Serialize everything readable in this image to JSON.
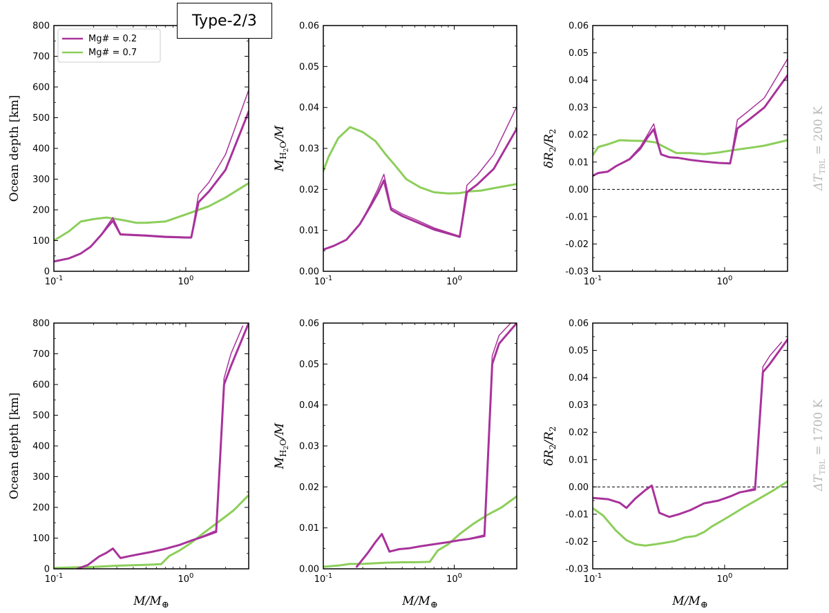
{
  "header": {
    "type_label": "Type-2/3"
  },
  "colors": {
    "purple": "#a8329b",
    "green": "#8cce5a"
  },
  "legend": [
    {
      "label": "Mg# = 0.2",
      "color": "#a8329b"
    },
    {
      "label": "Mg# = 0.7",
      "color": "#8cce5a"
    }
  ],
  "row_labels": [
    "ΔT_TBL = 200 K",
    "ΔT_TBL = 1700 K"
  ],
  "chart_data": [
    {
      "type": "line",
      "title": "",
      "xscale": "log",
      "xlim": [
        0.1,
        3
      ],
      "xlabel": "M/M⊕",
      "ylabel": "Ocean depth [km]",
      "ylim": [
        0,
        800
      ],
      "yticks": [
        "0",
        "100",
        "200",
        "300",
        "400",
        "500",
        "600",
        "700",
        "800"
      ],
      "xtick_labels": [
        "10^-1",
        "10^0"
      ],
      "series": [
        {
          "name": "Mg# = 0.2 (thick)",
          "color": "purple",
          "width": 3,
          "x": [
            0.1,
            0.13,
            0.16,
            0.19,
            0.23,
            0.25,
            0.28,
            0.32,
            0.4,
            0.5,
            0.7,
            1.0,
            1.1,
            1.25,
            1.5,
            2,
            3
          ],
          "y": [
            32,
            42,
            58,
            80,
            120,
            140,
            165,
            120,
            118,
            116,
            112,
            110,
            110,
            225,
            260,
            330,
            520
          ]
        },
        {
          "name": "Mg# = 0.2 (thin)",
          "color": "purple",
          "width": 1.5,
          "x": [
            0.1,
            0.13,
            0.16,
            0.19,
            0.23,
            0.25,
            0.28,
            0.32,
            0.4,
            0.5,
            0.7,
            1.0,
            1.1,
            1.25,
            1.5,
            2,
            3
          ],
          "y": [
            32,
            42,
            58,
            80,
            122,
            145,
            175,
            122,
            120,
            118,
            114,
            112,
            112,
            250,
            290,
            380,
            590
          ]
        },
        {
          "name": "Mg# = 0.7",
          "color": "green",
          "width": 3,
          "x": [
            0.1,
            0.13,
            0.16,
            0.2,
            0.25,
            0.3,
            0.35,
            0.42,
            0.5,
            0.7,
            1.0,
            1.5,
            2,
            3
          ],
          "y": [
            100,
            130,
            162,
            170,
            175,
            170,
            165,
            158,
            158,
            162,
            185,
            212,
            240,
            287
          ]
        }
      ]
    },
    {
      "type": "line",
      "title": "",
      "xscale": "log",
      "xlim": [
        0.1,
        3
      ],
      "xlabel": "M/M⊕",
      "ylabel": "M_H2O/M",
      "ylim": [
        0,
        0.06
      ],
      "yticks": [
        "0.00",
        "0.01",
        "0.02",
        "0.03",
        "0.04",
        "0.05",
        "0.06"
      ],
      "xtick_labels": [
        "10^-1",
        "10^0"
      ],
      "series": [
        {
          "name": "Mg# = 0.2 (thick)",
          "color": "purple",
          "width": 3,
          "x": [
            0.1,
            0.12,
            0.15,
            0.19,
            0.23,
            0.26,
            0.29,
            0.33,
            0.4,
            0.5,
            0.7,
            1.0,
            1.1,
            1.25,
            1.5,
            2,
            3
          ],
          "y": [
            0.0053,
            0.0062,
            0.0077,
            0.0115,
            0.016,
            0.019,
            0.0222,
            0.015,
            0.0135,
            0.0122,
            0.0102,
            0.0088,
            0.0084,
            0.0193,
            0.0212,
            0.025,
            0.0348
          ]
        },
        {
          "name": "Mg# = 0.2 (thin)",
          "color": "purple",
          "width": 1.5,
          "x": [
            0.1,
            0.12,
            0.15,
            0.19,
            0.23,
            0.26,
            0.29,
            0.33,
            0.4,
            0.5,
            0.7,
            1.0,
            1.1,
            1.25,
            1.5,
            2,
            3
          ],
          "y": [
            0.0053,
            0.0062,
            0.0077,
            0.0115,
            0.0165,
            0.02,
            0.0237,
            0.0155,
            0.014,
            0.0127,
            0.0106,
            0.009,
            0.0086,
            0.021,
            0.0235,
            0.0285,
            0.0402
          ]
        },
        {
          "name": "Mg# = 0.7",
          "color": "green",
          "width": 3,
          "x": [
            0.1,
            0.11,
            0.13,
            0.16,
            0.2,
            0.25,
            0.3,
            0.35,
            0.43,
            0.55,
            0.7,
            0.9,
            1.1,
            1.3,
            1.6,
            2,
            3
          ],
          "y": [
            0.0245,
            0.028,
            0.0325,
            0.0352,
            0.034,
            0.0318,
            0.0285,
            0.026,
            0.0225,
            0.0205,
            0.0193,
            0.019,
            0.0191,
            0.0195,
            0.0197,
            0.0203,
            0.0213
          ]
        }
      ]
    },
    {
      "type": "line",
      "title": "",
      "xscale": "log",
      "xlim": [
        0.1,
        3
      ],
      "xlabel": "M/M⊕",
      "ylabel": "δR2/R2",
      "ylim": [
        -0.03,
        0.06
      ],
      "yticks": [
        "-0.03",
        "-0.02",
        "-0.01",
        "0.00",
        "0.01",
        "0.02",
        "0.03",
        "0.04",
        "0.05",
        "0.06"
      ],
      "xtick_labels": [
        "10^-1",
        "10^0"
      ],
      "zero_line": true,
      "series": [
        {
          "name": "Mg# = 0.2 (thick)",
          "color": "purple",
          "width": 3,
          "x": [
            0.1,
            0.11,
            0.13,
            0.15,
            0.19,
            0.23,
            0.26,
            0.29,
            0.33,
            0.38,
            0.45,
            0.55,
            0.7,
            0.9,
            1.1,
            1.25,
            1.5,
            2,
            3
          ],
          "y": [
            0.005,
            0.006,
            0.0065,
            0.0085,
            0.011,
            0.015,
            0.019,
            0.022,
            0.0128,
            0.0118,
            0.0115,
            0.0108,
            0.0102,
            0.0097,
            0.0095,
            0.0223,
            0.0252,
            0.03,
            0.0418
          ]
        },
        {
          "name": "Mg# = 0.2 (thin)",
          "color": "purple",
          "width": 1.5,
          "x": [
            0.1,
            0.11,
            0.13,
            0.15,
            0.19,
            0.23,
            0.26,
            0.29,
            0.33,
            0.38,
            0.45,
            0.55,
            0.7,
            0.9,
            1.1,
            1.25,
            1.5,
            2,
            3
          ],
          "y": [
            0.005,
            0.006,
            0.0065,
            0.0085,
            0.0113,
            0.0157,
            0.02,
            0.024,
            0.0128,
            0.0118,
            0.0115,
            0.0108,
            0.0102,
            0.0097,
            0.0095,
            0.0255,
            0.0285,
            0.0335,
            0.0478
          ]
        },
        {
          "name": "Mg# = 0.7",
          "color": "green",
          "width": 3,
          "x": [
            0.1,
            0.11,
            0.13,
            0.16,
            0.2,
            0.25,
            0.3,
            0.35,
            0.43,
            0.55,
            0.7,
            0.9,
            1.1,
            1.3,
            1.6,
            2,
            3
          ],
          "y": [
            0.0125,
            0.0155,
            0.0165,
            0.018,
            0.0178,
            0.0177,
            0.0172,
            0.0155,
            0.0133,
            0.0133,
            0.0129,
            0.0135,
            0.0142,
            0.0147,
            0.0153,
            0.016,
            0.018
          ]
        }
      ]
    },
    {
      "type": "line",
      "title": "",
      "xscale": "log",
      "xlim": [
        0.1,
        3
      ],
      "xlabel": "M/M⊕",
      "ylabel": "Ocean depth [km]",
      "ylim": [
        0,
        800
      ],
      "yticks": [
        "0",
        "100",
        "200",
        "300",
        "400",
        "500",
        "600",
        "700",
        "800"
      ],
      "xtick_labels": [
        "10^-1",
        "10^0"
      ],
      "series": [
        {
          "name": "Mg# = 0.2 (thick)",
          "color": "purple",
          "width": 3,
          "x": [
            0.15,
            0.18,
            0.22,
            0.25,
            0.28,
            0.32,
            0.38,
            0.45,
            0.55,
            0.7,
            0.9,
            1.1,
            1.3,
            1.7,
            1.95,
            2.2,
            3
          ],
          "y": [
            0,
            12,
            40,
            52,
            66,
            35,
            42,
            48,
            55,
            65,
            78,
            92,
            102,
            120,
            600,
            660,
            800
          ]
        },
        {
          "name": "Mg# = 0.2 (thin)",
          "color": "purple",
          "width": 1.5,
          "x": [
            0.15,
            0.18,
            0.22,
            0.25,
            0.28,
            0.32,
            0.38,
            0.45,
            0.55,
            0.7,
            0.9,
            1.1,
            1.3,
            1.7,
            1.95,
            2.2,
            2.7
          ],
          "y": [
            0,
            12,
            40,
            52,
            66,
            35,
            42,
            48,
            55,
            65,
            78,
            92,
            104,
            125,
            620,
            700,
            790
          ]
        },
        {
          "name": "Mg# = 0.7",
          "color": "green",
          "width": 3,
          "x": [
            0.1,
            0.15,
            0.2,
            0.3,
            0.4,
            0.5,
            0.65,
            0.75,
            0.9,
            1.1,
            1.4,
            1.8,
            2.3,
            3
          ],
          "y": [
            3,
            5,
            6,
            10,
            12,
            13,
            15,
            42,
            60,
            85,
            120,
            155,
            190,
            240
          ]
        }
      ]
    },
    {
      "type": "line",
      "title": "",
      "xscale": "log",
      "xlim": [
        0.1,
        3
      ],
      "xlabel": "M/M⊕",
      "ylabel": "M_H2O/M",
      "ylim": [
        0,
        0.06
      ],
      "yticks": [
        "0.00",
        "0.01",
        "0.02",
        "0.03",
        "0.04",
        "0.05",
        "0.06"
      ],
      "xtick_labels": [
        "10^-1",
        "10^0"
      ],
      "series": [
        {
          "name": "Mg# = 0.2 (thick)",
          "color": "purple",
          "width": 3,
          "x": [
            0.18,
            0.22,
            0.25,
            0.28,
            0.32,
            0.38,
            0.45,
            0.55,
            0.7,
            0.9,
            1.1,
            1.3,
            1.7,
            1.95,
            2.2,
            3
          ],
          "y": [
            0.0005,
            0.004,
            0.0065,
            0.0085,
            0.0042,
            0.0048,
            0.005,
            0.0055,
            0.006,
            0.0065,
            0.007,
            0.0073,
            0.008,
            0.05,
            0.055,
            0.06
          ]
        },
        {
          "name": "Mg# = 0.2 (thin)",
          "color": "purple",
          "width": 1.5,
          "x": [
            0.18,
            0.22,
            0.25,
            0.28,
            0.32,
            0.38,
            0.45,
            0.55,
            0.7,
            0.9,
            1.1,
            1.3,
            1.7,
            1.95,
            2.2,
            2.7
          ],
          "y": [
            0.0005,
            0.004,
            0.0065,
            0.0085,
            0.0042,
            0.0048,
            0.005,
            0.0055,
            0.006,
            0.0065,
            0.007,
            0.0074,
            0.0083,
            0.052,
            0.057,
            0.06
          ]
        },
        {
          "name": "Mg# = 0.7",
          "color": "green",
          "width": 3,
          "x": [
            0.1,
            0.13,
            0.16,
            0.2,
            0.3,
            0.4,
            0.5,
            0.65,
            0.75,
            0.9,
            1.1,
            1.4,
            1.8,
            2.3,
            3
          ],
          "y": [
            0.0005,
            0.0008,
            0.0012,
            0.0012,
            0.0015,
            0.0016,
            0.0016,
            0.0017,
            0.0045,
            0.006,
            0.0085,
            0.011,
            0.0132,
            0.015,
            0.0177
          ]
        }
      ]
    },
    {
      "type": "line",
      "title": "",
      "xscale": "log",
      "xlim": [
        0.1,
        3
      ],
      "xlabel": "M/M⊕",
      "ylabel": "δR2/R2",
      "ylim": [
        -0.03,
        0.06
      ],
      "yticks": [
        "-0.03",
        "-0.02",
        "-0.01",
        "0.00",
        "0.01",
        "0.02",
        "0.03",
        "0.04",
        "0.05",
        "0.06"
      ],
      "xtick_labels": [
        "10^-1",
        "10^0"
      ],
      "zero_line": true,
      "series": [
        {
          "name": "Mg# = 0.2 (thick)",
          "color": "purple",
          "width": 3,
          "x": [
            0.1,
            0.13,
            0.16,
            0.18,
            0.21,
            0.25,
            0.28,
            0.32,
            0.38,
            0.45,
            0.55,
            0.7,
            0.9,
            1.1,
            1.3,
            1.7,
            1.95,
            2.2,
            3
          ],
          "y": [
            -0.004,
            -0.0045,
            -0.0058,
            -0.0077,
            -0.0043,
            -0.0012,
            0.0005,
            -0.0095,
            -0.011,
            -0.01,
            -0.0085,
            -0.006,
            -0.005,
            -0.0035,
            -0.002,
            -0.001,
            0.042,
            0.045,
            0.054
          ]
        },
        {
          "name": "Mg# = 0.2 (thin)",
          "color": "purple",
          "width": 1.5,
          "x": [
            0.1,
            0.13,
            0.16,
            0.18,
            0.21,
            0.25,
            0.28,
            0.32,
            0.38,
            0.45,
            0.55,
            0.7,
            0.9,
            1.1,
            1.3,
            1.7,
            1.95,
            2.2,
            2.7
          ],
          "y": [
            -0.004,
            -0.0045,
            -0.0058,
            -0.0077,
            -0.0043,
            -0.0012,
            0.0005,
            -0.0095,
            -0.011,
            -0.01,
            -0.0085,
            -0.006,
            -0.005,
            -0.0035,
            -0.002,
            -0.0005,
            0.044,
            0.048,
            0.053
          ]
        },
        {
          "name": "Mg# = 0.7",
          "color": "green",
          "width": 3,
          "x": [
            0.1,
            0.12,
            0.15,
            0.18,
            0.21,
            0.25,
            0.3,
            0.35,
            0.42,
            0.5,
            0.6,
            0.7,
            0.8,
            1.0,
            1.2,
            1.4,
            1.8,
            2.3,
            3
          ],
          "y": [
            -0.0078,
            -0.0105,
            -0.016,
            -0.0195,
            -0.021,
            -0.0215,
            -0.021,
            -0.0205,
            -0.0198,
            -0.0185,
            -0.018,
            -0.0165,
            -0.0145,
            -0.0118,
            -0.0095,
            -0.0075,
            -0.0045,
            -0.0015,
            0.002
          ]
        }
      ]
    }
  ]
}
